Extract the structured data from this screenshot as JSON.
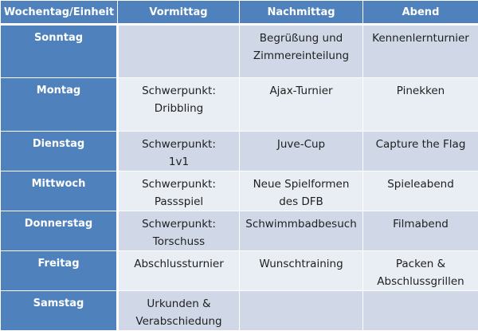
{
  "header": {
    "col0": "Wochentag/Einheit",
    "col1": "Vormittag",
    "col2": "Nachmittag",
    "col3": "Abend"
  },
  "rows": [
    {
      "day": "Sonntag",
      "vormittag": "",
      "nachmittag": "Begrüßung und\nZimmereinteilung",
      "abend": "Kennenlernturnier"
    },
    {
      "day": "Montag",
      "vormittag": "Schwerpunkt:\nDribbling",
      "nachmittag": "Ajax-Turnier",
      "abend": "Pinekken"
    },
    {
      "day": "Dienstag",
      "vormittag": "Schwerpunkt:\n1v1",
      "nachmittag": "Juve-Cup",
      "abend": "Capture the Flag"
    },
    {
      "day": "Mittwoch",
      "vormittag": "Schwerpunkt:\nPassspiel",
      "nachmittag": "Neue Spielformen\ndes DFB",
      "abend": "Spieleabend"
    },
    {
      "day": "Donnerstag",
      "vormittag": "Schwerpunkt:\nTorschuss",
      "nachmittag": "Schwimmbadbesuch",
      "abend": "Filmabend"
    },
    {
      "day": "Freitag",
      "vormittag": "Abschlussturnier",
      "nachmittag": "Wunschtraining",
      "abend": "Packen &\nAbschlussgrillen"
    },
    {
      "day": "Samstag",
      "vormittag": "Urkunden &\nVerabschiedung",
      "nachmittag": "",
      "abend": ""
    }
  ],
  "colors": {
    "header_bg": "#4f81bd",
    "row_band_dark": "#d0d8e8",
    "row_band_light": "#e9edf4",
    "text": "#1f1f1f"
  }
}
